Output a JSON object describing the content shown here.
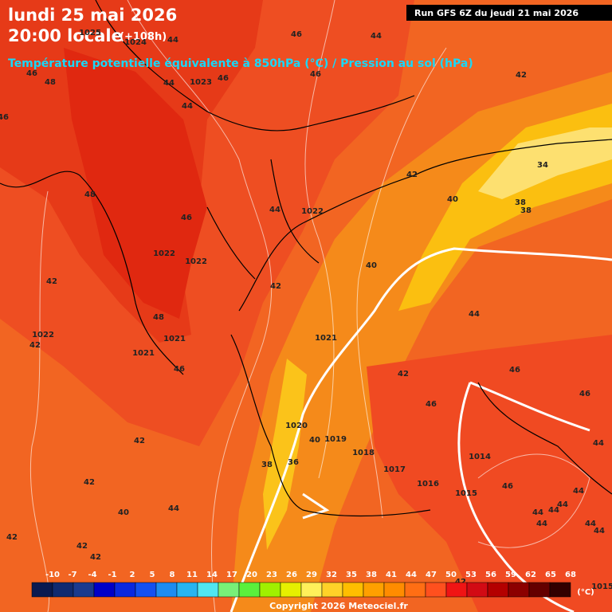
{
  "header": {
    "date": "lundi 25 mai 2026",
    "time": "20:00 locale",
    "lead": "(+108h)",
    "subtitle": "Température potentielle équivalente à 850hPa (°C) / Pression au sol (hPa)",
    "run": "Run GFS 6Z du jeudi 21 mai 2026"
  },
  "map_labels": [
    "1025",
    "1024",
    "44",
    "46",
    "44",
    "48",
    "46",
    "44",
    "1023",
    "46",
    "44",
    "46",
    "42",
    "46",
    "48",
    "46",
    "44",
    "1022",
    "42",
    "40",
    "34",
    "38",
    "38",
    "1022",
    "1022",
    "42",
    "42",
    "40",
    "48",
    "1021",
    "1022",
    "42",
    "1021",
    "1021",
    "44",
    "46",
    "42",
    "46",
    "46",
    "46",
    "1020",
    "40",
    "1019",
    "42",
    "1018",
    "36",
    "38",
    "1014",
    "44",
    "1017",
    "42",
    "1016",
    "1015",
    "46",
    "44",
    "44",
    "44",
    "40",
    "44",
    "44",
    "44",
    "44",
    "44",
    "42",
    "42",
    "42",
    "42",
    "1015"
  ],
  "colorbar": {
    "labels": [
      "-10",
      "-7",
      "-4",
      "-1",
      "2",
      "5",
      "8",
      "11",
      "14",
      "17",
      "20",
      "23",
      "26",
      "29",
      "32",
      "35",
      "38",
      "41",
      "44",
      "47",
      "50",
      "53",
      "56",
      "59",
      "62",
      "65",
      "68"
    ],
    "colors": [
      "#0a1a50",
      "#102a70",
      "#1a3a8e",
      "#0000c8",
      "#0a28e0",
      "#1450f0",
      "#1e8cf0",
      "#28b4f0",
      "#50e6f0",
      "#78f078",
      "#5af03c",
      "#a0f000",
      "#e6f000",
      "#fff05a",
      "#ffd228",
      "#ffbe00",
      "#ffa000",
      "#ff8c00",
      "#ff6e14",
      "#ff501e",
      "#f01414",
      "#d20a14",
      "#b40000",
      "#8c0000",
      "#640000",
      "#320000"
    ],
    "unit": "(°C)"
  },
  "copyright": "Copyright 2026 Meteociel.fr"
}
